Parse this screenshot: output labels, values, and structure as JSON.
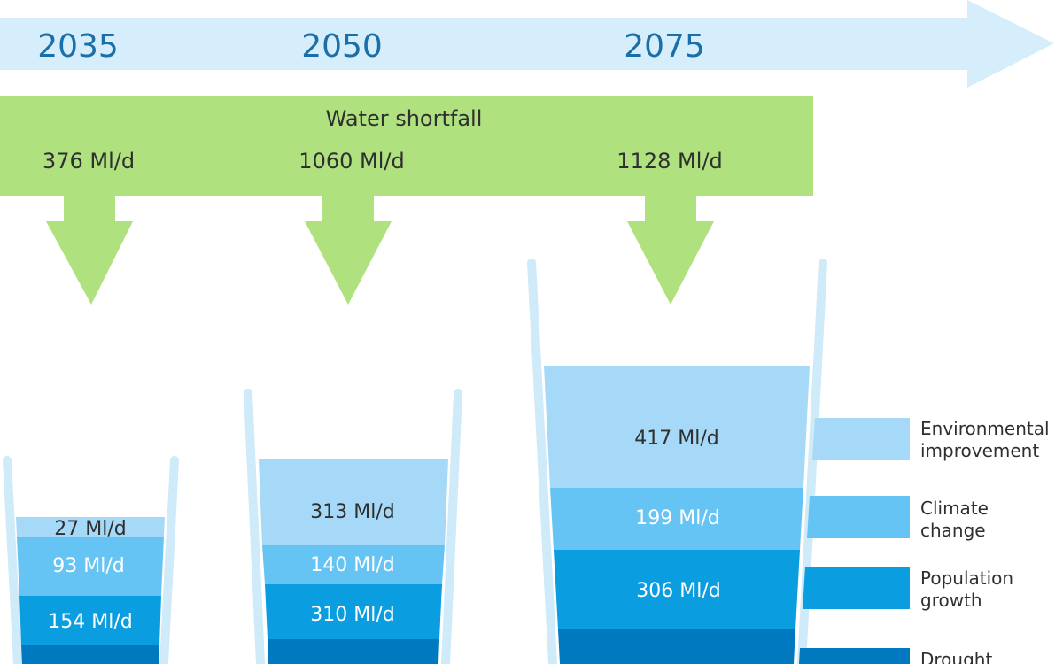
{
  "timeline": {
    "years": [
      "2035",
      "2050",
      "2075"
    ]
  },
  "shortfall": {
    "title": "Water shortfall",
    "values": [
      "376 Ml/d",
      "1060 Ml/d",
      "1128 Ml/d"
    ]
  },
  "glasses": [
    {
      "year": "2035",
      "layers": [
        {
          "key": "environmental",
          "label": "27 Ml/d"
        },
        {
          "key": "climate",
          "label": "93 Ml/d"
        },
        {
          "key": "population",
          "label": "154 Ml/d"
        },
        {
          "key": "drought",
          "label": ""
        }
      ]
    },
    {
      "year": "2050",
      "layers": [
        {
          "key": "environmental",
          "label": "313 Ml/d"
        },
        {
          "key": "climate",
          "label": "140 Ml/d"
        },
        {
          "key": "population",
          "label": "310 Ml/d"
        },
        {
          "key": "drought",
          "label": ""
        }
      ]
    },
    {
      "year": "2075",
      "layers": [
        {
          "key": "environmental",
          "label": "417 Ml/d"
        },
        {
          "key": "climate",
          "label": "199 Ml/d"
        },
        {
          "key": "population",
          "label": "306 Ml/d"
        },
        {
          "key": "drought",
          "label": ""
        }
      ]
    }
  ],
  "legend": [
    {
      "key": "environmental",
      "line1": "Environmental",
      "line2": "improvement"
    },
    {
      "key": "climate",
      "line1": "Climate",
      "line2": "change"
    },
    {
      "key": "population",
      "line1": "Population",
      "line2": "growth"
    },
    {
      "key": "drought",
      "line1": "Drought",
      "line2": ""
    }
  ],
  "colors": {
    "timeline_arrow": "#d6eefb",
    "shortfall_green": "#b0e17f",
    "glass_rim": "#cfeaf8",
    "environmental": "#a6d9f7",
    "climate": "#66c4f4",
    "population": "#0a9ee0",
    "drought": "#0079c0",
    "year_text": "#1b6fa8"
  }
}
